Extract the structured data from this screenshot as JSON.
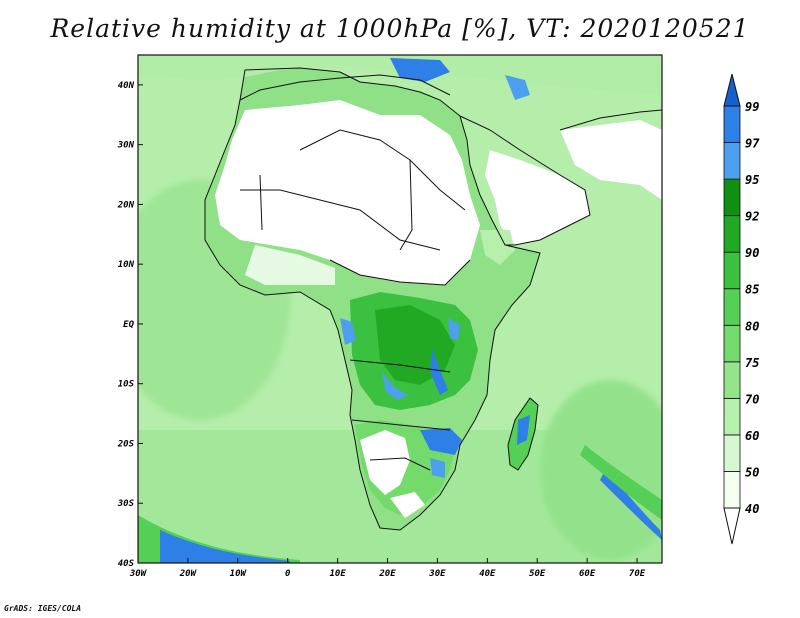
{
  "title": "Relative humidity at 1000hPa [%], VT: 2020120521",
  "credit": "GrADS: IGES/COLA",
  "map": {
    "lon_range": [
      -30,
      75
    ],
    "lat_range": [
      -40,
      45
    ],
    "lon_ticks": [
      "30W",
      "20W",
      "10W",
      "0",
      "10E",
      "20E",
      "30E",
      "40E",
      "50E",
      "60E",
      "70E"
    ],
    "lat_ticks": [
      "40N",
      "30N",
      "20N",
      "10N",
      "EQ",
      "10S",
      "20S",
      "30S",
      "40S"
    ]
  },
  "colorbar": {
    "levels": [
      "40",
      "50",
      "60",
      "70",
      "75",
      "80",
      "85",
      "90",
      "92",
      "95",
      "97",
      "99"
    ],
    "colors": [
      "#f4fff2",
      "#d7f7d2",
      "#b7efad",
      "#95e48c",
      "#74da6c",
      "#55cf55",
      "#3cc03f",
      "#22a923",
      "#118f12",
      "#4da0f0",
      "#2e7fe6",
      "#1560cc"
    ]
  }
}
